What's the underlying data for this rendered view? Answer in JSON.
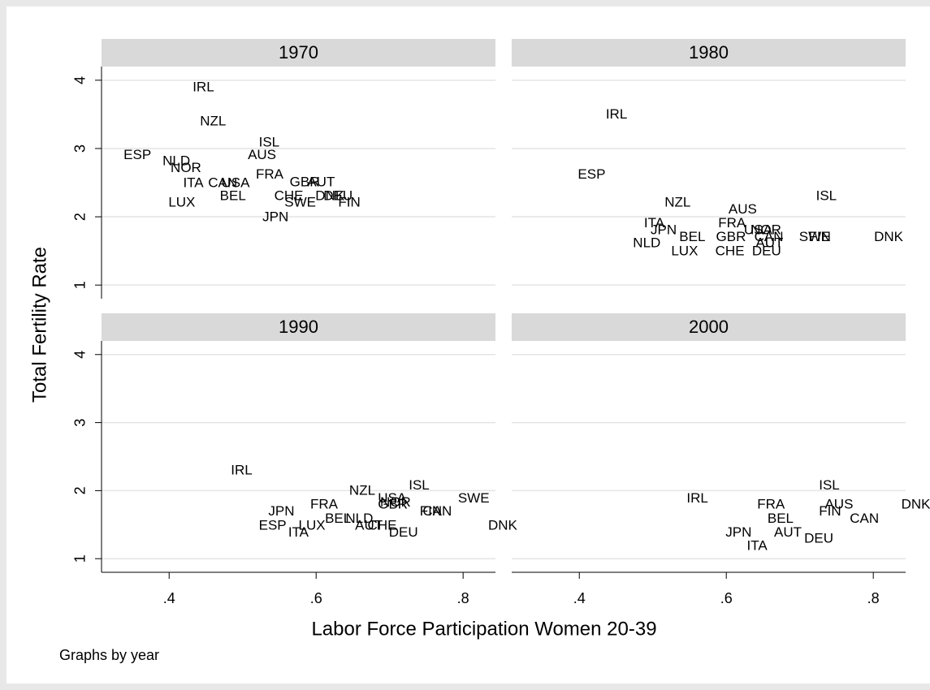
{
  "chart_data": [
    {
      "type": "scatter",
      "title": "1970",
      "labels": [
        "IRL",
        "NZL",
        "ISL",
        "AUS",
        "ESP",
        "NLD",
        "NOR",
        "FRA",
        "GBR",
        "AUT",
        "ITA",
        "CAN",
        "USA",
        "BEL",
        "CHE",
        "DNK",
        "DEU",
        "SWE",
        "FIN",
        "LUX",
        "JPN"
      ],
      "x": [
        0.432,
        0.442,
        0.522,
        0.507,
        0.338,
        0.391,
        0.402,
        0.518,
        0.564,
        0.588,
        0.419,
        0.453,
        0.471,
        0.469,
        0.543,
        0.599,
        0.61,
        0.557,
        0.63,
        0.399,
        0.527
      ],
      "y": [
        3.89,
        3.39,
        3.08,
        2.9,
        2.9,
        2.81,
        2.71,
        2.61,
        2.5,
        2.5,
        2.49,
        2.49,
        2.49,
        2.3,
        2.3,
        2.3,
        2.3,
        2.2,
        2.2,
        2.2,
        1.99
      ]
    },
    {
      "type": "scatter",
      "title": "1980",
      "labels": [
        "IRL",
        "ESP",
        "NZL",
        "ISL",
        "AUS",
        "ITA",
        "FRA",
        "JPN",
        "USA",
        "NOR",
        "BEL",
        "GBR",
        "CAN",
        "AUT",
        "SWE",
        "FIN",
        "DNK",
        "NLD",
        "LUX",
        "CHE",
        "DEU"
      ],
      "x": [
        0.436,
        0.398,
        0.516,
        0.722,
        0.603,
        0.488,
        0.589,
        0.497,
        0.624,
        0.633,
        0.536,
        0.586,
        0.638,
        0.64,
        0.699,
        0.712,
        0.801,
        0.473,
        0.525,
        0.585,
        0.635
      ],
      "y": [
        3.49,
        2.61,
        2.2,
        2.3,
        2.1,
        1.9,
        1.9,
        1.8,
        1.8,
        1.8,
        1.7,
        1.7,
        1.7,
        1.61,
        1.7,
        1.7,
        1.7,
        1.61,
        1.49,
        1.49,
        1.49
      ]
    },
    {
      "type": "scatter",
      "title": "1990",
      "labels": [
        "IRL",
        "ISL",
        "NZL",
        "SWE",
        "USA",
        "NOR",
        "GBR",
        "FRA",
        "FIN",
        "CAN",
        "JPN",
        "BEL",
        "NLD",
        "LUX",
        "ESP",
        "AUT",
        "CHE",
        "DNK",
        "ITA",
        "DEU"
      ],
      "x": [
        0.484,
        0.726,
        0.645,
        0.793,
        0.684,
        0.687,
        0.684,
        0.592,
        0.741,
        0.745,
        0.535,
        0.612,
        0.64,
        0.576,
        0.522,
        0.653,
        0.67,
        0.834,
        0.562,
        0.699
      ],
      "y": [
        2.29,
        2.07,
        1.99,
        1.88,
        1.88,
        1.82,
        1.79,
        1.79,
        1.69,
        1.69,
        1.69,
        1.58,
        1.58,
        1.48,
        1.48,
        1.48,
        1.48,
        1.48,
        1.38,
        1.38
      ]
    },
    {
      "type": "scatter",
      "title": "2000",
      "labels": [
        "ISL",
        "IRL",
        "DNK",
        "AUS",
        "FRA",
        "FIN",
        "CAN",
        "BEL",
        "AUT",
        "JPN",
        "DEU",
        "ITA"
      ],
      "x": [
        0.726,
        0.546,
        0.838,
        0.734,
        0.642,
        0.726,
        0.768,
        0.656,
        0.665,
        0.599,
        0.706,
        0.628
      ],
      "y": [
        2.07,
        1.88,
        1.79,
        1.79,
        1.79,
        1.69,
        1.58,
        1.58,
        1.38,
        1.38,
        1.29,
        1.18
      ]
    }
  ],
  "xlabel": "Labor Force Participation Women 20-39",
  "ylabel": "Total Fertility Rate",
  "note": "Graphs by year",
  "xlim": [
    0.308,
    0.844
  ],
  "xticks": [
    {
      "value": 0.4,
      "label": ".4"
    },
    {
      "value": 0.6,
      "label": ".6"
    },
    {
      "value": 0.8,
      "label": ".8"
    }
  ],
  "ylim": [
    0.8,
    4.2
  ],
  "yticks": [
    1,
    2,
    3,
    4
  ],
  "grid": true
}
